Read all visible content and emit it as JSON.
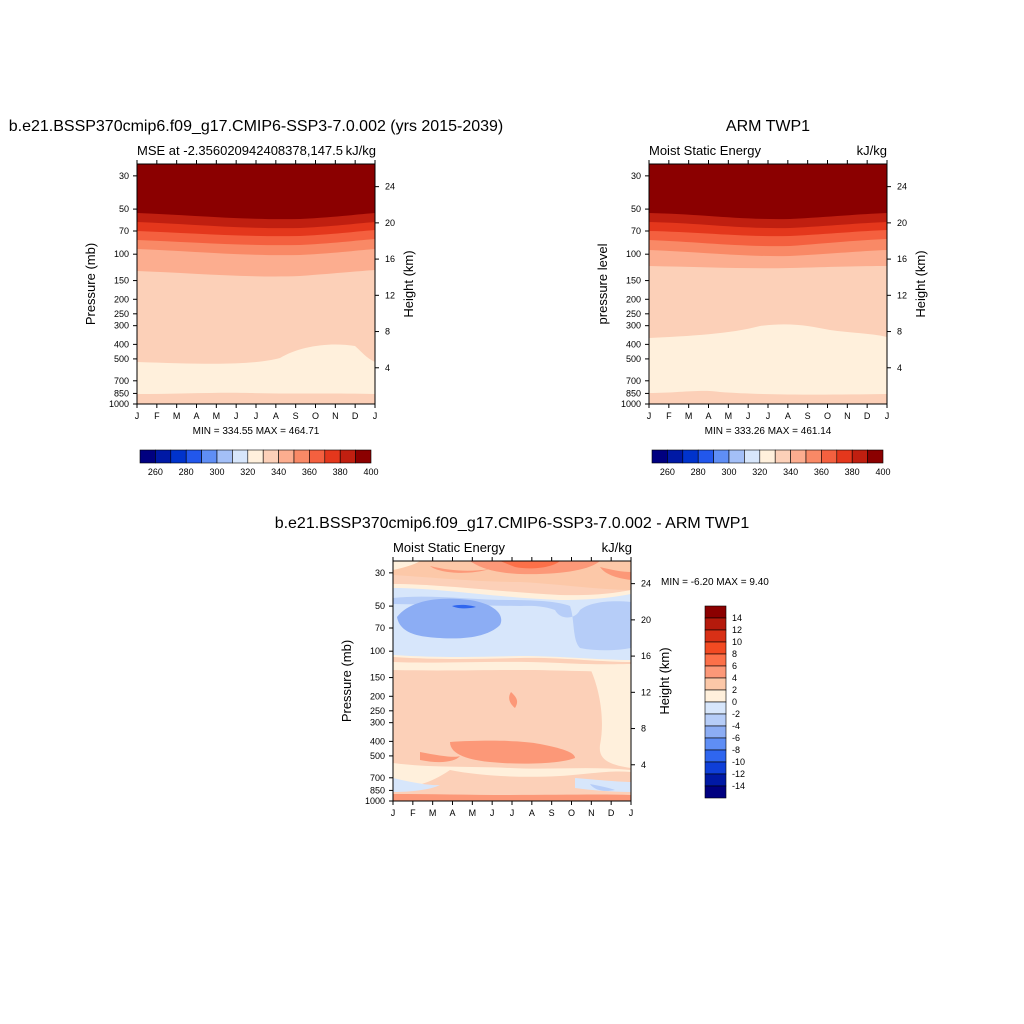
{
  "panels": [
    {
      "title": "b.e21.BSSP370cmip6.f09_g17.CMIP6-SSP3-7.0.002 (yrs 2015-2039)",
      "left_label": "MSE at -2.356020942408378,147.5",
      "right_label": "kJ/kg",
      "ylabel": "Pressure (mb)",
      "y2label": "Height (km)",
      "minmax": "MIN = 334.55 MAX = 464.71"
    },
    {
      "title": "ARM TWP1",
      "left_label": "Moist Static Energy",
      "right_label": "kJ/kg",
      "ylabel": "pressure level",
      "y2label": "Height (km)",
      "minmax": "MIN = 333.26 MAX = 461.14"
    },
    {
      "title": "b.e21.BSSP370cmip6.f09_g17.CMIP6-SSP3-7.0.002 - ARM TWP1",
      "left_label": "Moist Static Energy",
      "right_label": "kJ/kg",
      "ylabel": "Pressure (mb)",
      "y2label": "Height (km)",
      "minmax": "MIN =  -6.20 MAX =   9.40"
    }
  ],
  "chart_data": [
    {
      "type": "heatmap",
      "x": [
        "J",
        "F",
        "M",
        "A",
        "M",
        "J",
        "J",
        "A",
        "S",
        "O",
        "N",
        "D",
        "J"
      ],
      "pressure_levels": [
        30,
        50,
        70,
        100,
        150,
        200,
        250,
        300,
        400,
        500,
        700,
        850,
        1000
      ],
      "height_ticks": [
        4,
        8,
        12,
        16,
        20,
        24
      ],
      "colorbar_labels": [
        "260",
        "280",
        "300",
        "320",
        "340",
        "360",
        "380",
        "400"
      ],
      "colors": [
        "#000080",
        "#0019a5",
        "#0033cc",
        "#2257ec",
        "#5f8ef5",
        "#a3bff7",
        "#d7e6fb",
        "#fff0dc",
        "#fcd0b8",
        "#fcad8f",
        "#f98966",
        "#f4603f",
        "#e4371c",
        "#c01f10",
        "#8b0000"
      ]
    },
    {
      "type": "heatmap",
      "x": [
        "J",
        "F",
        "M",
        "A",
        "M",
        "J",
        "J",
        "A",
        "S",
        "O",
        "N",
        "D",
        "J"
      ],
      "pressure_levels": [
        30,
        50,
        70,
        100,
        150,
        200,
        250,
        300,
        400,
        500,
        700,
        850,
        1000
      ],
      "height_ticks": [
        4,
        8,
        12,
        16,
        20,
        24
      ],
      "colorbar_labels": [
        "260",
        "280",
        "300",
        "320",
        "340",
        "360",
        "380",
        "400"
      ]
    },
    {
      "type": "heatmap",
      "x": [
        "J",
        "F",
        "M",
        "A",
        "M",
        "J",
        "J",
        "A",
        "S",
        "O",
        "N",
        "D",
        "J"
      ],
      "pressure_levels": [
        30,
        50,
        70,
        100,
        150,
        200,
        250,
        300,
        400,
        500,
        700,
        850,
        1000
      ],
      "height_ticks": [
        4,
        8,
        12,
        16,
        20,
        24
      ],
      "colorbar_labels": [
        "14",
        "12",
        "10",
        "8",
        "6",
        "4",
        "2",
        "0",
        "-2",
        "-4",
        "-6",
        "-8",
        "-10",
        "-12",
        "-14"
      ],
      "colors": [
        "#8b0000",
        "#b51a0c",
        "#d83016",
        "#f24a22",
        "#fc7049",
        "#fc9878",
        "#fcc8a8",
        "#fff0dc",
        "#d7e6fb",
        "#b6cdf8",
        "#8cadf4",
        "#5f8ef5",
        "#2f66ef",
        "#0f3fd8",
        "#0019a5",
        "#000080"
      ]
    }
  ]
}
